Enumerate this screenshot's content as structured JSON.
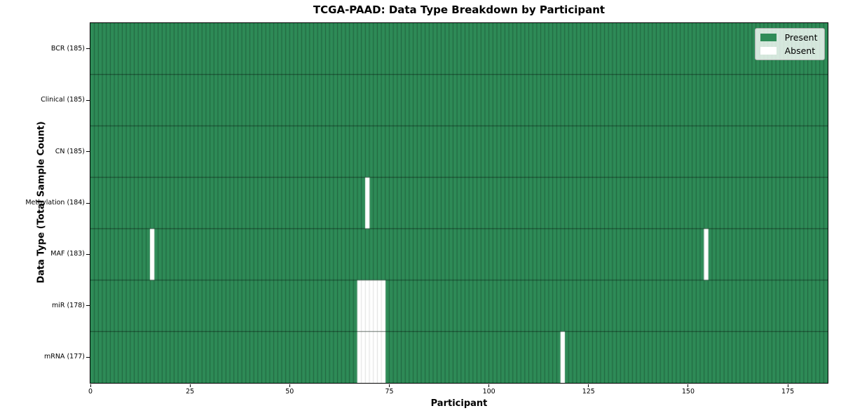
{
  "chart_data": {
    "type": "heatmap",
    "title": "TCGA-PAAD: Data Type Breakdown by Participant",
    "xlabel": "Participant",
    "ylabel": "Data Type (Total Sample Count)",
    "x_axis": {
      "min": 0,
      "max": 185,
      "tick_values": [
        0,
        25,
        50,
        75,
        100,
        125,
        150,
        175
      ]
    },
    "n_participants": 185,
    "legend_position": "upper right",
    "grid": "cell-edges",
    "legend": [
      {
        "label": "Present",
        "color": "#2e8b57"
      },
      {
        "label": "Absent",
        "color": "#ffffff"
      }
    ],
    "colors": {
      "present": "#2e8b57",
      "absent": "#ffffff",
      "cell_edge": "rgba(0,0,0,0.5)",
      "absent_cell_edge": "rgba(0,0,0,0.22)",
      "row_divider": "rgba(0,0,0,0.55)",
      "axis": "#000000"
    },
    "rows": [
      {
        "label": "BCR (185)",
        "data_type": "BCR",
        "present_count": 185,
        "absent_participants": []
      },
      {
        "label": "Clinical (185)",
        "data_type": "Clinical",
        "present_count": 185,
        "absent_participants": []
      },
      {
        "label": "CN (185)",
        "data_type": "CN",
        "present_count": 185,
        "absent_participants": []
      },
      {
        "label": "Methylation (184)",
        "data_type": "Methylation",
        "present_count": 184,
        "absent_participants": [
          69
        ]
      },
      {
        "label": "MAF (183)",
        "data_type": "MAF",
        "present_count": 183,
        "absent_participants": [
          15,
          154
        ]
      },
      {
        "label": "miR (178)",
        "data_type": "miR",
        "present_count": 178,
        "absent_participants": [
          67,
          68,
          69,
          70,
          71,
          72,
          73
        ]
      },
      {
        "label": "mRNA (177)",
        "data_type": "mRNA",
        "present_count": 177,
        "absent_participants": [
          67,
          68,
          69,
          70,
          71,
          72,
          73,
          118
        ]
      }
    ]
  }
}
